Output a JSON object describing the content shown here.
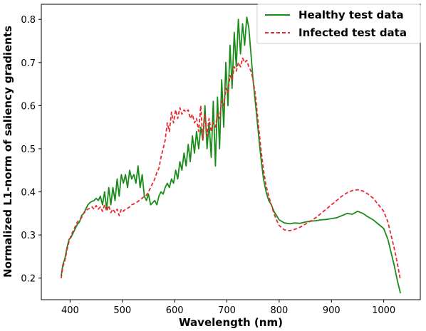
{
  "chart_data": {
    "type": "line",
    "title": "",
    "xlabel": "Wavelength (nm)",
    "ylabel": "Normalized L1-norm of saliency gradients",
    "xlim": [
      345,
      1070
    ],
    "ylim": [
      0.15,
      0.835
    ],
    "xticks": [
      400,
      500,
      600,
      700,
      800,
      900,
      1000
    ],
    "yticks": [
      0.2,
      0.3,
      0.4,
      0.5,
      0.6,
      0.7,
      0.8
    ],
    "grid": false,
    "legend_position": "top-right",
    "series": [
      {
        "name": "Healthy test data",
        "color": "#1a8c1a",
        "style": "solid",
        "x": [
          383,
          386,
          390,
          394,
          398,
          402,
          406,
          410,
          414,
          418,
          422,
          426,
          430,
          434,
          438,
          442,
          446,
          450,
          454,
          458,
          462,
          466,
          470,
          474,
          478,
          482,
          486,
          490,
          494,
          498,
          502,
          506,
          510,
          514,
          518,
          522,
          526,
          530,
          534,
          538,
          542,
          546,
          550,
          554,
          558,
          562,
          566,
          570,
          574,
          578,
          582,
          586,
          590,
          594,
          598,
          602,
          606,
          610,
          614,
          618,
          622,
          626,
          630,
          634,
          638,
          642,
          646,
          650,
          654,
          658,
          662,
          666,
          670,
          674,
          678,
          682,
          686,
          690,
          694,
          698,
          702,
          706,
          710,
          714,
          718,
          722,
          726,
          730,
          734,
          738,
          742,
          746,
          750,
          755,
          760,
          765,
          770,
          775,
          780,
          785,
          790,
          795,
          800,
          810,
          820,
          830,
          840,
          850,
          860,
          870,
          880,
          890,
          900,
          910,
          920,
          930,
          940,
          950,
          960,
          970,
          980,
          990,
          1000,
          1008,
          1014,
          1020,
          1026,
          1032
        ],
        "values": [
          0.205,
          0.23,
          0.245,
          0.27,
          0.29,
          0.295,
          0.305,
          0.315,
          0.325,
          0.33,
          0.345,
          0.35,
          0.36,
          0.37,
          0.375,
          0.378,
          0.38,
          0.385,
          0.38,
          0.39,
          0.37,
          0.4,
          0.36,
          0.41,
          0.37,
          0.41,
          0.38,
          0.43,
          0.39,
          0.44,
          0.42,
          0.44,
          0.41,
          0.45,
          0.43,
          0.44,
          0.42,
          0.46,
          0.41,
          0.44,
          0.39,
          0.38,
          0.395,
          0.37,
          0.375,
          0.38,
          0.37,
          0.39,
          0.4,
          0.395,
          0.41,
          0.42,
          0.41,
          0.43,
          0.42,
          0.45,
          0.43,
          0.47,
          0.45,
          0.49,
          0.46,
          0.51,
          0.47,
          0.53,
          0.49,
          0.54,
          0.5,
          0.55,
          0.52,
          0.6,
          0.5,
          0.56,
          0.48,
          0.61,
          0.46,
          0.62,
          0.5,
          0.66,
          0.55,
          0.7,
          0.6,
          0.74,
          0.64,
          0.77,
          0.69,
          0.8,
          0.72,
          0.79,
          0.74,
          0.805,
          0.78,
          0.72,
          0.66,
          0.6,
          0.54,
          0.48,
          0.43,
          0.4,
          0.38,
          0.37,
          0.355,
          0.345,
          0.335,
          0.328,
          0.326,
          0.328,
          0.327,
          0.33,
          0.332,
          0.333,
          0.335,
          0.336,
          0.338,
          0.34,
          0.345,
          0.35,
          0.348,
          0.355,
          0.35,
          0.342,
          0.335,
          0.325,
          0.315,
          0.29,
          0.26,
          0.23,
          0.195,
          0.165
        ]
      },
      {
        "name": "Infected test data",
        "color": "#e8292f",
        "style": "dashed",
        "x": [
          383,
          386,
          390,
          394,
          398,
          402,
          406,
          410,
          414,
          418,
          422,
          426,
          430,
          434,
          438,
          442,
          446,
          450,
          454,
          458,
          462,
          466,
          470,
          474,
          478,
          482,
          486,
          490,
          494,
          498,
          502,
          506,
          510,
          514,
          518,
          522,
          526,
          530,
          534,
          538,
          542,
          546,
          550,
          554,
          558,
          562,
          566,
          570,
          574,
          578,
          582,
          586,
          590,
          594,
          598,
          602,
          606,
          610,
          614,
          618,
          622,
          626,
          630,
          634,
          638,
          642,
          646,
          650,
          654,
          658,
          662,
          666,
          670,
          674,
          678,
          682,
          686,
          690,
          694,
          698,
          702,
          706,
          710,
          714,
          718,
          722,
          726,
          730,
          734,
          738,
          742,
          746,
          750,
          755,
          760,
          765,
          770,
          775,
          780,
          785,
          790,
          795,
          800,
          810,
          820,
          830,
          840,
          850,
          860,
          870,
          880,
          890,
          900,
          910,
          920,
          930,
          940,
          950,
          960,
          970,
          980,
          990,
          1000,
          1008,
          1014,
          1020,
          1026,
          1032
        ],
        "values": [
          0.2,
          0.225,
          0.24,
          0.265,
          0.285,
          0.3,
          0.31,
          0.32,
          0.33,
          0.335,
          0.34,
          0.35,
          0.355,
          0.36,
          0.362,
          0.365,
          0.36,
          0.368,
          0.36,
          0.365,
          0.355,
          0.37,
          0.355,
          0.368,
          0.352,
          0.36,
          0.352,
          0.36,
          0.345,
          0.36,
          0.355,
          0.36,
          0.362,
          0.365,
          0.37,
          0.372,
          0.375,
          0.378,
          0.382,
          0.385,
          0.39,
          0.392,
          0.4,
          0.41,
          0.42,
          0.43,
          0.445,
          0.455,
          0.48,
          0.5,
          0.52,
          0.56,
          0.54,
          0.585,
          0.56,
          0.59,
          0.57,
          0.595,
          0.58,
          0.59,
          0.585,
          0.59,
          0.57,
          0.58,
          0.56,
          0.57,
          0.54,
          0.6,
          0.52,
          0.58,
          0.53,
          0.57,
          0.54,
          0.56,
          0.55,
          0.58,
          0.57,
          0.61,
          0.6,
          0.64,
          0.63,
          0.67,
          0.66,
          0.69,
          0.68,
          0.7,
          0.69,
          0.71,
          0.7,
          0.705,
          0.69,
          0.68,
          0.66,
          0.62,
          0.56,
          0.5,
          0.45,
          0.415,
          0.39,
          0.37,
          0.35,
          0.335,
          0.322,
          0.312,
          0.31,
          0.313,
          0.318,
          0.325,
          0.332,
          0.34,
          0.35,
          0.36,
          0.37,
          0.38,
          0.39,
          0.398,
          0.403,
          0.405,
          0.402,
          0.395,
          0.385,
          0.37,
          0.355,
          0.33,
          0.3,
          0.27,
          0.235,
          0.195
        ]
      }
    ]
  }
}
